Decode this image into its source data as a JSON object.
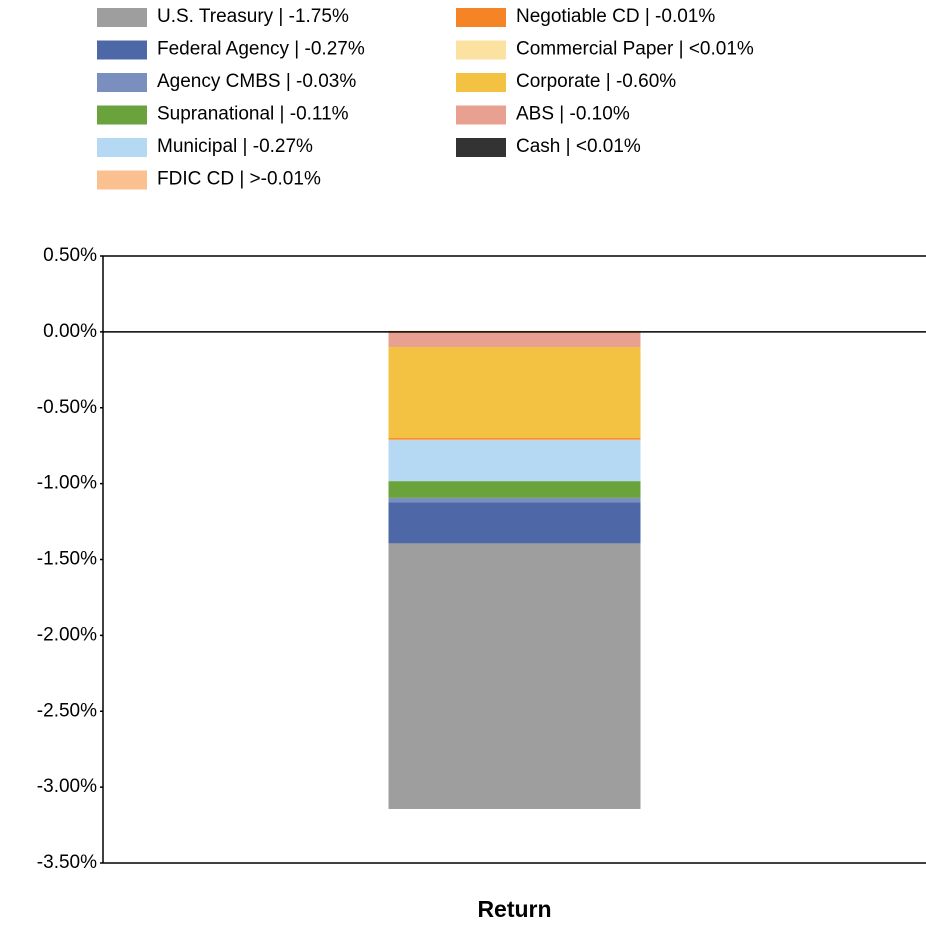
{
  "chart_data": {
    "type": "stacked_bar",
    "categories": [
      "Return"
    ],
    "series": [
      {
        "name": "U.S. Treasury | -1.75%",
        "color": "#9e9e9e",
        "values": [
          -1.75
        ]
      },
      {
        "name": "Federal Agency | -0.27%",
        "color": "#4e67a6",
        "values": [
          -0.27
        ]
      },
      {
        "name": "Agency CMBS | -0.03%",
        "color": "#7b8fbf",
        "values": [
          -0.03
        ]
      },
      {
        "name": "Supranational | -0.11%",
        "color": "#6aa23c",
        "values": [
          -0.11
        ]
      },
      {
        "name": "Municipal | -0.27%",
        "color": "#b5d9f2",
        "values": [
          -0.27
        ]
      },
      {
        "name": "FDIC CD | >-0.01%",
        "color": "#fbc08f",
        "values": [
          -0.004
        ]
      },
      {
        "name": "Negotiable CD | -0.01%",
        "color": "#f58426",
        "values": [
          -0.01
        ]
      },
      {
        "name": "Commercial Paper | <0.01%",
        "color": "#fbe2a0",
        "values": [
          0.004
        ]
      },
      {
        "name": "Corporate | -0.60%",
        "color": "#f3c242",
        "values": [
          -0.6
        ]
      },
      {
        "name": "ABS | -0.10%",
        "color": "#e8a090",
        "values": [
          -0.1
        ]
      },
      {
        "name": "Cash | <0.01%",
        "color": "#333333",
        "values": [
          0.004
        ]
      }
    ],
    "ylim": [
      -3.5,
      0.5
    ],
    "yticks": [
      {
        "value": 0.5,
        "label": "0.50%"
      },
      {
        "value": 0,
        "label": "0.00%"
      },
      {
        "value": -0.5,
        "label": "-0.50%"
      },
      {
        "value": -1,
        "label": "-1.00%"
      },
      {
        "value": -1.5,
        "label": "-1.50%"
      },
      {
        "value": -2,
        "label": "-2.00%"
      },
      {
        "value": -2.5,
        "label": "-2.50%"
      },
      {
        "value": -3,
        "label": "-3.00%"
      },
      {
        "value": -3.5,
        "label": "-3.50%"
      }
    ]
  }
}
